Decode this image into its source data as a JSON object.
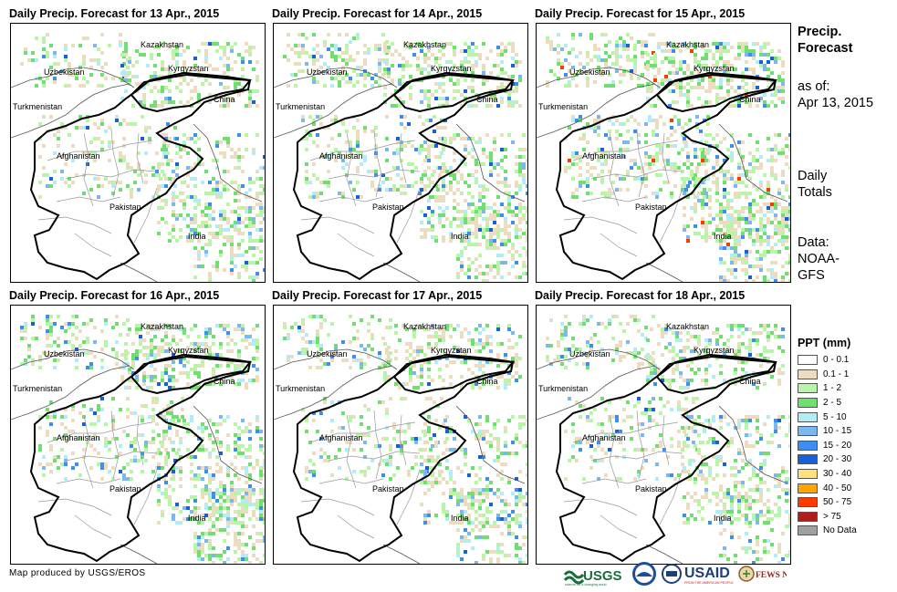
{
  "panels": [
    {
      "title": "Daily Precip. Forecast for 13 Apr., 2015",
      "intensity": 1
    },
    {
      "title": "Daily Precip. Forecast for 14 Apr., 2015",
      "intensity": 2
    },
    {
      "title": "Daily Precip. Forecast for 15 Apr., 2015",
      "intensity": 3
    },
    {
      "title": "Daily Precip. Forecast for 16 Apr., 2015",
      "intensity": 2
    },
    {
      "title": "Daily Precip. Forecast for 17 Apr., 2015",
      "intensity": 1
    },
    {
      "title": "Daily Precip. Forecast for 18 Apr., 2015",
      "intensity": 1
    }
  ],
  "countries": {
    "kazakhstan": "Kazakhstan",
    "uzbekistan": "Uzbekistan",
    "kyrgyzstan": "Kyrgyzstan",
    "turkmenistan": "Turkmenistan",
    "china": "China",
    "afghanistan": "Afghanistan",
    "pakistan": "Pakistan",
    "india": "India"
  },
  "side": {
    "title_line1": "Precip.",
    "title_line2": "Forecast",
    "asof_line1": "as of:",
    "asof_line2": "Apr 13, 2015",
    "daily_line1": "Daily",
    "daily_line2": "Totals",
    "data_line1": "Data:",
    "data_line2": "NOAA-",
    "data_line3": "GFS"
  },
  "legend": {
    "title": "PPT (mm)",
    "items": [
      {
        "label": "0 - 0.1",
        "color": "#ffffff"
      },
      {
        "label": "0.1 - 1",
        "color": "#ecdcc0"
      },
      {
        "label": "1 - 2",
        "color": "#b9f5a6"
      },
      {
        "label": "2 - 5",
        "color": "#6fe06f"
      },
      {
        "label": "5 - 10",
        "color": "#b2ecf8"
      },
      {
        "label": "10 - 15",
        "color": "#7cb8f0"
      },
      {
        "label": "15 - 20",
        "color": "#3c8ff0"
      },
      {
        "label": "20 - 30",
        "color": "#1560dd"
      },
      {
        "label": "30 - 40",
        "color": "#fee179"
      },
      {
        "label": "40 - 50",
        "color": "#ffa500"
      },
      {
        "label": "50 - 75",
        "color": "#ff3a00"
      },
      {
        "label": "> 75",
        "color": "#b01d1d"
      },
      {
        "label": "No Data",
        "color": "#a0a0a0"
      }
    ]
  },
  "credit": "Map produced by USGS/EROS",
  "logos": {
    "usgs": "USGS",
    "usaid": "USAID",
    "fewsnet": "FEWS NET"
  }
}
